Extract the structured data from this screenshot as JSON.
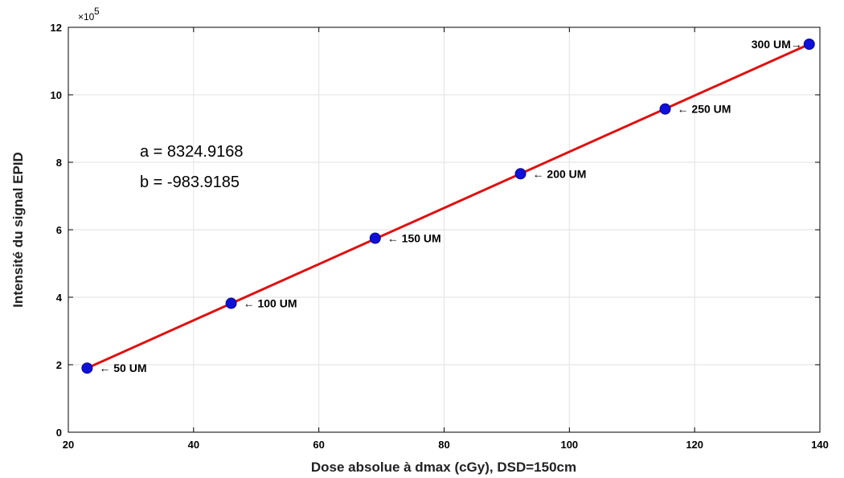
{
  "chart_data": {
    "type": "scatter",
    "xlabel": "Dose absolue à dmax (cGy), DSD=150cm",
    "ylabel": "Intensité du signal EPID",
    "y_multiplier": "×10",
    "y_exponent": "5",
    "xlim": [
      20,
      140
    ],
    "ylim": [
      0,
      12
    ],
    "x_ticks": [
      20,
      40,
      60,
      80,
      100,
      120,
      140
    ],
    "y_ticks": [
      0,
      2,
      4,
      6,
      8,
      10,
      12
    ],
    "grid": true,
    "point_color": "#1010d8",
    "line_color": "#e01010",
    "fit_line": {
      "x": [
        23,
        138.3
      ],
      "y": [
        1.9,
        11.5
      ]
    },
    "points": [
      {
        "x": 23.0,
        "y": 1.9,
        "label": "← 50 UM",
        "side": "right"
      },
      {
        "x": 46.0,
        "y": 3.82,
        "label": "← 100 UM",
        "side": "right"
      },
      {
        "x": 69.0,
        "y": 5.75,
        "label": "← 150 UM",
        "side": "right"
      },
      {
        "x": 92.2,
        "y": 7.66,
        "label": "← 200 UM",
        "side": "right"
      },
      {
        "x": 115.3,
        "y": 9.58,
        "label": "← 250 UM",
        "side": "right"
      },
      {
        "x": 138.3,
        "y": 11.5,
        "label": "300 UM→",
        "side": "left"
      }
    ],
    "annotations": [
      "a = 8324.9168",
      "b = -983.9185"
    ]
  }
}
